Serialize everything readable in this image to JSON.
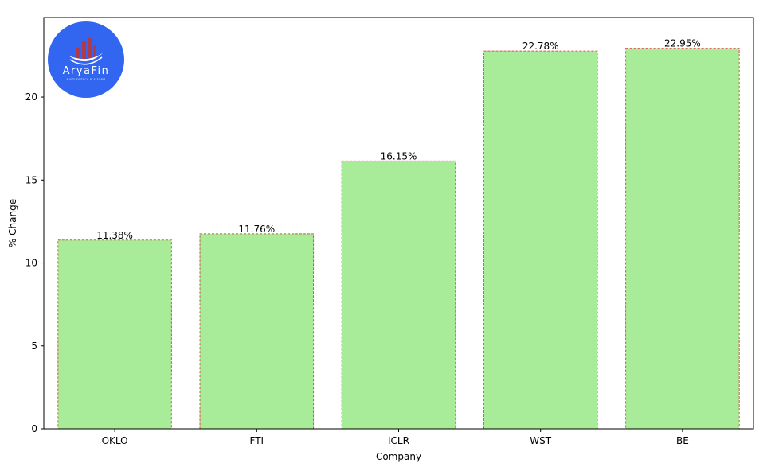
{
  "logo": {
    "name": "AryaFin",
    "tagline": "MULTI FINTECH PLATFORM",
    "bg_color": "#3366f0",
    "bar_color": "#b03a48"
  },
  "chart_data": {
    "type": "bar",
    "categories": [
      "OKLO",
      "FTI",
      "ICLR",
      "WST",
      "BE"
    ],
    "values": [
      11.38,
      11.76,
      16.15,
      22.78,
      22.95
    ],
    "data_labels": [
      "11.38%",
      "11.76%",
      "16.15%",
      "22.78%",
      "22.95%"
    ],
    "title": "",
    "xlabel": "Company",
    "ylabel": "% Change",
    "ylim": [
      0,
      24.8
    ],
    "yticks": [
      0,
      5,
      10,
      15,
      20
    ],
    "grid": false,
    "bar_color": "#a8eb98",
    "bar_edge_color": "#d9534f"
  }
}
